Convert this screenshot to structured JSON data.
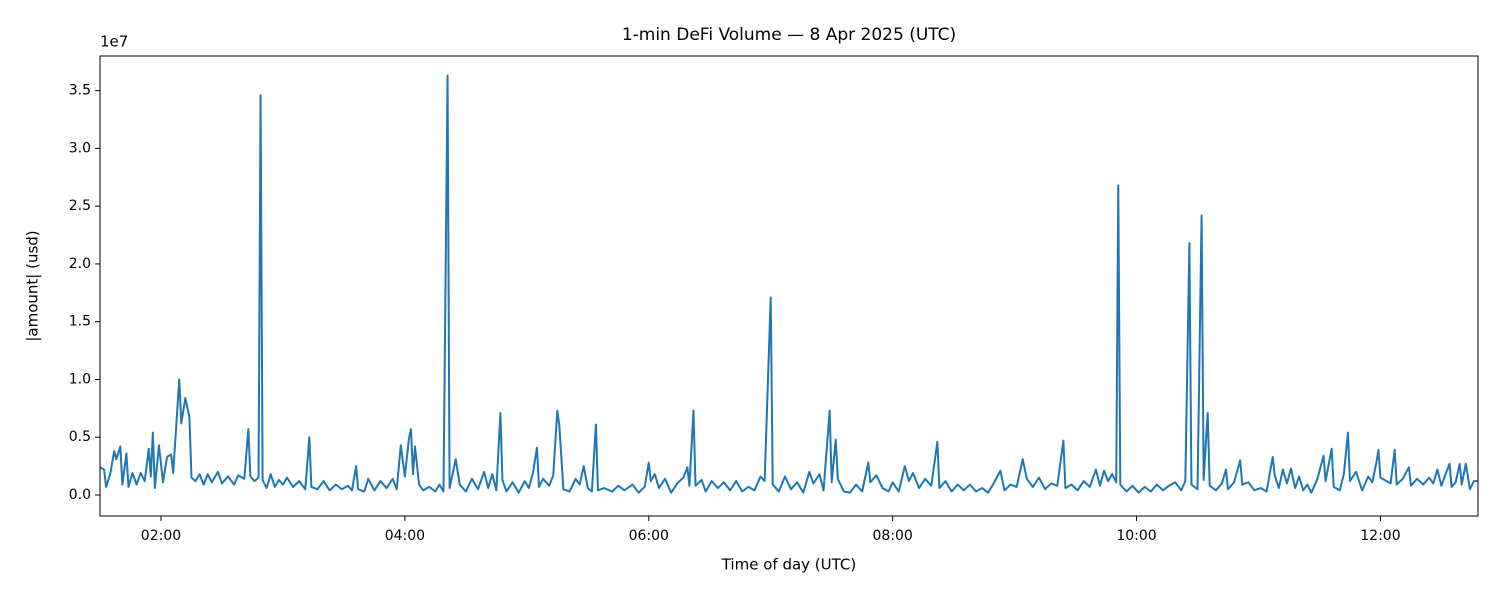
{
  "chart_data": {
    "type": "line",
    "title": "1-min DeFi Volume — 8 Apr 2025 (UTC)",
    "x_label": "Time of day (UTC)",
    "y_label": "|amount| (usd)",
    "y_offset_label": "1e7",
    "color": "#1f77b4",
    "xlim": [
      "01:30",
      "12:48"
    ],
    "xticks": [
      "02:00",
      "04:00",
      "06:00",
      "08:00",
      "10:00",
      "12:00"
    ],
    "ylim": [
      -1820000,
      38000000
    ],
    "yticks": [
      {
        "value": 0,
        "label": "0.0"
      },
      {
        "value": 5000000,
        "label": "0.5"
      },
      {
        "value": 10000000,
        "label": "1.0"
      },
      {
        "value": 15000000,
        "label": "1.5"
      },
      {
        "value": 20000000,
        "label": "2.0"
      },
      {
        "value": 25000000,
        "label": "2.5"
      },
      {
        "value": 30000000,
        "label": "3.0"
      },
      {
        "value": 35000000,
        "label": "3.5"
      }
    ],
    "x": [
      "01:30",
      "01:32",
      "01:33",
      "01:35",
      "01:37",
      "01:38",
      "01:40",
      "01:41",
      "01:43",
      "01:44",
      "01:46",
      "01:48",
      "01:50",
      "01:52",
      "01:54",
      "01:55",
      "01:56",
      "01:57",
      "01:59",
      "02:01",
      "02:03",
      "02:05",
      "02:06",
      "02:09",
      "02:10",
      "02:12",
      "02:14",
      "02:15",
      "02:17",
      "02:19",
      "02:21",
      "02:23",
      "02:25",
      "02:28",
      "02:30",
      "02:33",
      "02:36",
      "02:38",
      "02:41",
      "02:43",
      "02:44",
      "02:46",
      "02:48",
      "02:49",
      "02:50",
      "02:52",
      "02:54",
      "02:56",
      "02:58",
      "03:00",
      "03:02",
      "03:05",
      "03:08",
      "03:11",
      "03:13",
      "03:14",
      "03:17",
      "03:20",
      "03:23",
      "03:26",
      "03:29",
      "03:32",
      "03:34",
      "03:36",
      "03:37",
      "03:40",
      "03:42",
      "03:45",
      "03:48",
      "03:51",
      "03:54",
      "03:56",
      "03:58",
      "04:00",
      "04:02",
      "04:03",
      "04:04",
      "04:05",
      "04:07",
      "04:09",
      "04:12",
      "04:15",
      "04:17",
      "04:19",
      "04:21",
      "04:22",
      "04:25",
      "04:27",
      "04:30",
      "04:33",
      "04:36",
      "04:39",
      "04:41",
      "04:43",
      "04:45",
      "04:47",
      "04:48",
      "04:50",
      "04:53",
      "04:56",
      "04:59",
      "05:01",
      "05:03",
      "05:05",
      "05:06",
      "05:08",
      "05:11",
      "05:13",
      "05:15",
      "05:16",
      "05:18",
      "05:21",
      "05:24",
      "05:26",
      "05:28",
      "05:30",
      "05:32",
      "05:34",
      "05:35",
      "05:38",
      "05:42",
      "05:45",
      "05:48",
      "05:52",
      "05:55",
      "05:58",
      "06:00",
      "06:01",
      "06:03",
      "06:05",
      "06:08",
      "06:11",
      "06:14",
      "06:17",
      "06:19",
      "06:20",
      "06:22",
      "06:23",
      "06:26",
      "06:28",
      "06:31",
      "06:34",
      "06:37",
      "06:40",
      "06:43",
      "06:46",
      "06:49",
      "06:52",
      "06:55",
      "06:57",
      "07:00",
      "07:01",
      "07:04",
      "07:07",
      "07:10",
      "07:13",
      "07:16",
      "07:19",
      "07:21",
      "07:24",
      "07:26",
      "07:29",
      "07:30",
      "07:32",
      "07:33",
      "07:36",
      "07:39",
      "07:42",
      "07:45",
      "07:48",
      "07:49",
      "07:52",
      "07:55",
      "07:58",
      "08:00",
      "08:03",
      "08:06",
      "08:08",
      "08:10",
      "08:13",
      "08:16",
      "08:19",
      "08:22",
      "08:23",
      "08:26",
      "08:29",
      "08:32",
      "08:35",
      "08:38",
      "08:41",
      "08:44",
      "08:47",
      "08:50",
      "08:53",
      "08:55",
      "08:58",
      "09:01",
      "09:04",
      "09:06",
      "09:09",
      "09:12",
      "09:15",
      "09:18",
      "09:21",
      "09:24",
      "09:25",
      "09:28",
      "09:31",
      "09:34",
      "09:37",
      "09:40",
      "09:42",
      "09:44",
      "09:46",
      "09:48",
      "09:50",
      "09:51",
      "09:52",
      "09:55",
      "09:58",
      "10:01",
      "10:04",
      "10:07",
      "10:10",
      "10:13",
      "10:16",
      "10:19",
      "10:22",
      "10:24",
      "10:26",
      "10:27",
      "10:30",
      "10:32",
      "10:33",
      "10:35",
      "10:36",
      "10:39",
      "10:42",
      "10:44",
      "10:45",
      "10:48",
      "10:51",
      "10:52",
      "10:55",
      "10:58",
      "11:01",
      "11:04",
      "11:07",
      "11:08",
      "11:10",
      "11:12",
      "11:14",
      "11:16",
      "11:18",
      "11:20",
      "11:22",
      "11:24",
      "11:26",
      "11:29",
      "11:32",
      "11:33",
      "11:36",
      "11:37",
      "11:40",
      "11:42",
      "11:44",
      "11:45",
      "11:48",
      "11:51",
      "11:54",
      "11:56",
      "11:58",
      "11:59",
      "12:00",
      "12:03",
      "12:05",
      "12:07",
      "12:08",
      "12:11",
      "12:14",
      "12:15",
      "12:18",
      "12:21",
      "12:24",
      "12:26",
      "12:28",
      "12:30",
      "12:32",
      "12:34",
      "12:35",
      "12:37",
      "12:39",
      "12:40",
      "12:42",
      "12:44",
      "12:46",
      "12:48"
    ],
    "values": [
      2400000,
      2200000,
      700000,
      1800000,
      3800000,
      3100000,
      4200000,
      900000,
      3600000,
      700000,
      1900000,
      900000,
      1900000,
      1200000,
      4000000,
      1600000,
      5400000,
      600000,
      4300000,
      1100000,
      3300000,
      3500000,
      1900000,
      10000000,
      6200000,
      8400000,
      6700000,
      1500000,
      1200000,
      1800000,
      900000,
      1800000,
      1100000,
      2000000,
      1000000,
      1600000,
      900000,
      1700000,
      1400000,
      5700000,
      1600000,
      1200000,
      1500000,
      34600000,
      1300000,
      600000,
      1800000,
      700000,
      1300000,
      900000,
      1500000,
      700000,
      1200000,
      500000,
      5000000,
      700000,
      500000,
      1200000,
      400000,
      900000,
      500000,
      800000,
      400000,
      2500000,
      500000,
      300000,
      1400000,
      400000,
      1200000,
      600000,
      1400000,
      500000,
      4300000,
      1600000,
      4900000,
      5700000,
      1800000,
      4200000,
      900000,
      400000,
      700000,
      300000,
      900000,
      300000,
      36300000,
      600000,
      3100000,
      900000,
      300000,
      1400000,
      500000,
      2000000,
      600000,
      1800000,
      400000,
      7100000,
      1300000,
      300000,
      1100000,
      200000,
      1200000,
      600000,
      1900000,
      4100000,
      700000,
      1400000,
      800000,
      1700000,
      7300000,
      6000000,
      500000,
      300000,
      1400000,
      900000,
      2500000,
      600000,
      300000,
      6100000,
      400000,
      600000,
      300000,
      800000,
      400000,
      900000,
      200000,
      700000,
      2800000,
      1200000,
      1800000,
      600000,
      1400000,
      200000,
      1000000,
      1500000,
      2400000,
      800000,
      7300000,
      800000,
      1300000,
      300000,
      1200000,
      600000,
      1100000,
      400000,
      1200000,
      300000,
      700000,
      400000,
      1600000,
      1200000,
      17100000,
      900000,
      300000,
      1600000,
      500000,
      1100000,
      200000,
      2000000,
      1000000,
      1800000,
      400000,
      7300000,
      1100000,
      4800000,
      1400000,
      300000,
      200000,
      900000,
      300000,
      2800000,
      1100000,
      1700000,
      600000,
      300000,
      1100000,
      300000,
      2500000,
      1200000,
      1900000,
      600000,
      1400000,
      800000,
      4600000,
      600000,
      1200000,
      300000,
      900000,
      400000,
      900000,
      300000,
      600000,
      200000,
      1100000,
      2100000,
      400000,
      900000,
      700000,
      3100000,
      1400000,
      700000,
      1500000,
      500000,
      1000000,
      800000,
      4700000,
      600000,
      900000,
      400000,
      1200000,
      700000,
      2200000,
      800000,
      2100000,
      1200000,
      1800000,
      1100000,
      26800000,
      900000,
      300000,
      800000,
      200000,
      700000,
      300000,
      900000,
      400000,
      800000,
      1100000,
      400000,
      1200000,
      21800000,
      900000,
      500000,
      24200000,
      1300000,
      7100000,
      800000,
      400000,
      1000000,
      2200000,
      500000,
      1100000,
      3000000,
      900000,
      1100000,
      400000,
      600000,
      300000,
      3300000,
      1700000,
      600000,
      2200000,
      1000000,
      2300000,
      600000,
      1600000,
      400000,
      900000,
      200000,
      1400000,
      3400000,
      1200000,
      4000000,
      700000,
      400000,
      1800000,
      5400000,
      1200000,
      2000000,
      400000,
      1600000,
      1100000,
      2800000,
      3900000,
      1500000,
      1200000,
      1000000,
      3900000,
      900000,
      1400000,
      2400000,
      800000,
      1400000,
      900000,
      1500000,
      1000000,
      2200000,
      800000,
      1800000,
      2700000,
      700000,
      1100000,
      2700000,
      900000,
      2700000,
      500000,
      1200000,
      1200000
    ]
  }
}
